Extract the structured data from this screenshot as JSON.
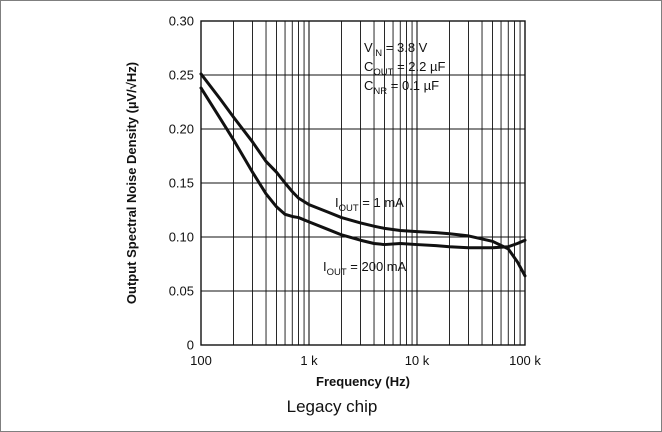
{
  "chart_data": {
    "type": "line",
    "xscale": "log",
    "xlabel": "Frequency (Hz)",
    "ylabel": "Output Spectral Noise Density (µV/√Hz)",
    "xlim": [
      100,
      100000
    ],
    "ylim": [
      0,
      0.3
    ],
    "x_tick_labels": [
      {
        "value": 100,
        "label": "100"
      },
      {
        "value": 1000,
        "label": "1 k"
      },
      {
        "value": 10000,
        "label": "10 k"
      },
      {
        "value": 100000,
        "label": "100 k"
      }
    ],
    "y_tick_labels": [
      {
        "value": 0,
        "label": "0"
      },
      {
        "value": 0.05,
        "label": "0.05"
      },
      {
        "value": 0.1,
        "label": "0.10"
      },
      {
        "value": 0.15,
        "label": "0.15"
      },
      {
        "value": 0.2,
        "label": "0.20"
      },
      {
        "value": 0.25,
        "label": "0.25"
      },
      {
        "value": 0.3,
        "label": "0.30"
      }
    ],
    "grid": true,
    "conditions": [
      {
        "main": "V",
        "sub": "IN",
        "rest": " = 3.8 V"
      },
      {
        "main": "C",
        "sub": "OUT",
        "rest": " = 2.2 µF"
      },
      {
        "main": "C",
        "sub": "NR",
        "rest": " = 0.1 µF"
      }
    ],
    "series": [
      {
        "name": "I_OUT = 1 mA",
        "label": {
          "main": "I",
          "sub": "OUT",
          "rest": " = 1 mA"
        },
        "x": [
          100,
          150,
          200,
          300,
          400,
          500,
          600,
          700,
          800,
          1000,
          1500,
          2000,
          3000,
          4000,
          5000,
          7000,
          10000,
          15000,
          20000,
          30000,
          50000,
          70000,
          85000,
          100000
        ],
        "y": [
          0.251,
          0.228,
          0.211,
          0.188,
          0.17,
          0.16,
          0.15,
          0.142,
          0.136,
          0.13,
          0.123,
          0.118,
          0.113,
          0.11,
          0.108,
          0.106,
          0.105,
          0.104,
          0.103,
          0.101,
          0.096,
          0.089,
          0.077,
          0.064
        ]
      },
      {
        "name": "I_OUT = 200 mA",
        "label": {
          "main": "I",
          "sub": "OUT",
          "rest": " = 200 mA"
        },
        "x": [
          100,
          150,
          200,
          300,
          400,
          500,
          600,
          700,
          800,
          1000,
          1500,
          2000,
          3000,
          4000,
          5000,
          7000,
          10000,
          15000,
          20000,
          30000,
          50000,
          70000,
          85000,
          100000
        ],
        "y": [
          0.238,
          0.21,
          0.19,
          0.16,
          0.14,
          0.128,
          0.121,
          0.119,
          0.118,
          0.114,
          0.107,
          0.102,
          0.097,
          0.094,
          0.093,
          0.094,
          0.093,
          0.092,
          0.091,
          0.09,
          0.09,
          0.091,
          0.094,
          0.097
        ]
      }
    ]
  },
  "caption": "Legacy chip"
}
